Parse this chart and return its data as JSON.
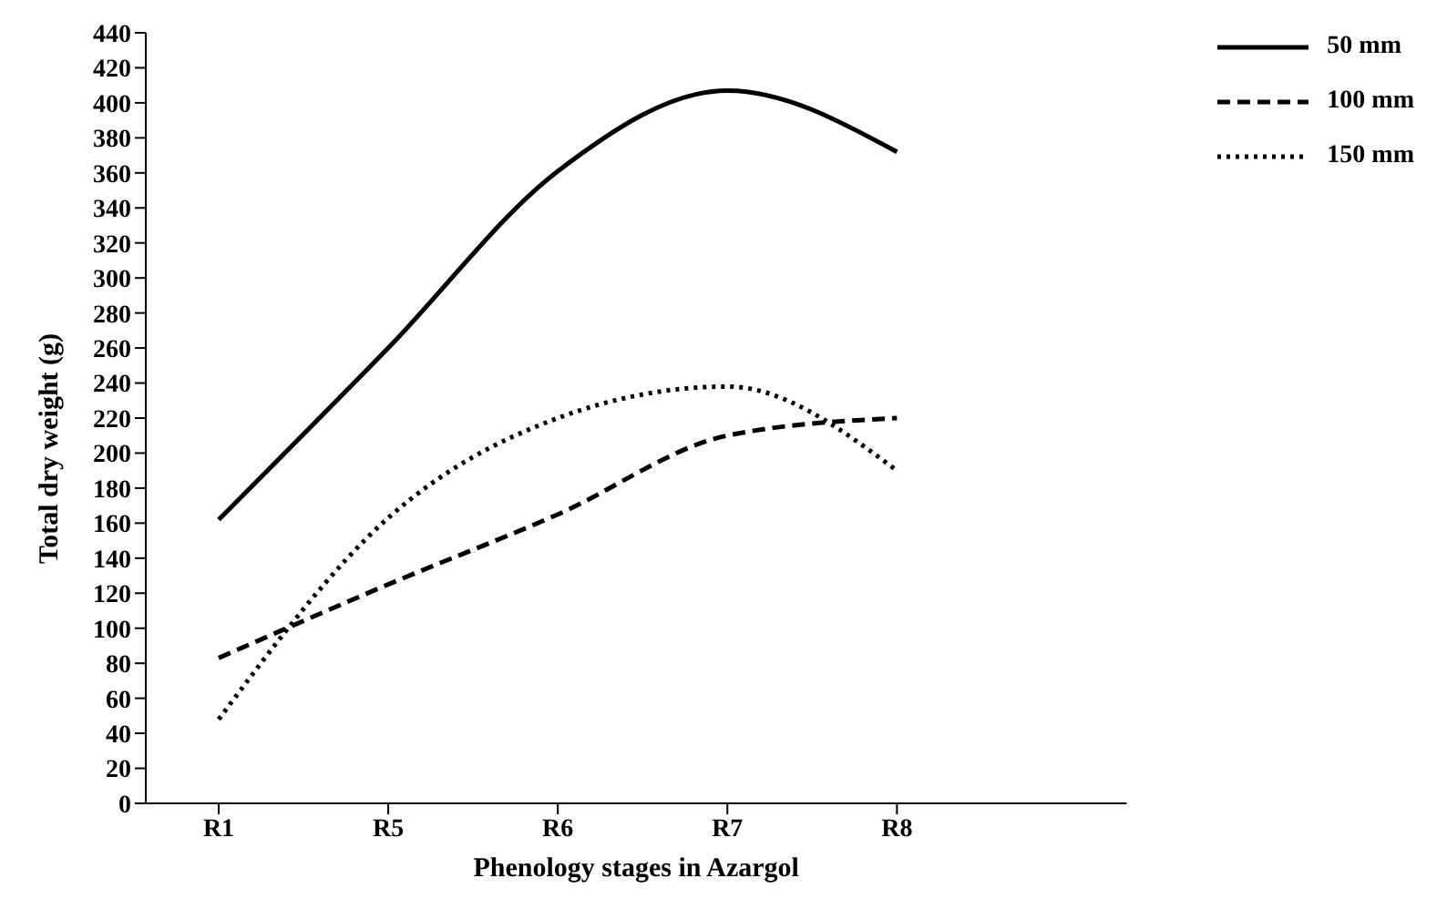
{
  "chart_data": {
    "type": "line",
    "xlabel": "Phenology stages in Azargol",
    "ylabel": "Total dry weight (g)",
    "categories": [
      "R1",
      "R5",
      "R6",
      "R7",
      "R8"
    ],
    "series": [
      {
        "name": "50 mm",
        "color": "#000000",
        "line_style": "solid",
        "values": [
          162,
          260,
          361,
          407,
          372
        ]
      },
      {
        "name": "100 mm",
        "color": "#000000",
        "line_style": "dashed",
        "values": [
          83,
          125,
          165,
          210,
          220
        ]
      },
      {
        "name": "150 mm",
        "color": "#000000",
        "line_style": "dotted",
        "values": [
          48,
          163,
          220,
          238,
          190
        ]
      }
    ],
    "ylim": [
      0,
      440
    ],
    "yticks": [
      0,
      20,
      40,
      60,
      80,
      100,
      120,
      140,
      160,
      180,
      200,
      220,
      240,
      260,
      280,
      300,
      320,
      340,
      360,
      380,
      400,
      420,
      440
    ],
    "grid": false,
    "legend": "top right",
    "marker": "none"
  }
}
